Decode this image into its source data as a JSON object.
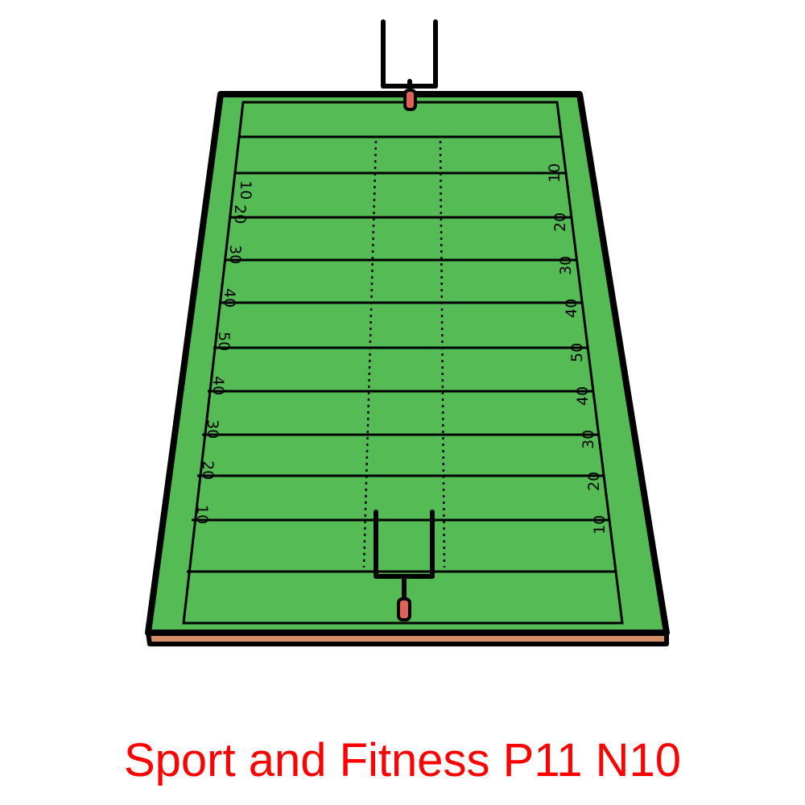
{
  "caption": "Sport and Fitness P11 N10",
  "yard_numbers": [
    "10",
    "20",
    "30",
    "40",
    "50",
    "40",
    "30",
    "20",
    "10"
  ],
  "colors": {
    "turf": "#55bb55",
    "outline": "#000000",
    "base": "#d4916a",
    "goalpost_base": "#e0605a",
    "caption": "#ff0000",
    "background": "#ffffff"
  }
}
